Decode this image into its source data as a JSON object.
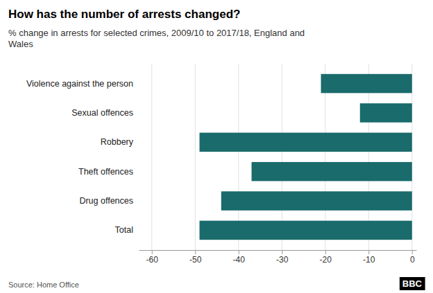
{
  "chart_data": {
    "type": "bar",
    "orientation": "horizontal",
    "title": "How has the number of arrests changed?",
    "subtitle": "% change in arrests for selected crimes, 2009/10 to 2017/18, England and\nWales",
    "source": "Source: Home Office",
    "annotations": [
      "BBC"
    ],
    "categories": [
      "Total",
      "Drug offences",
      "Theft offences",
      "Robbery",
      "Sexual offences",
      "Violence against the person"
    ],
    "values": [
      -49,
      -44,
      -37,
      -49,
      -12,
      -21
    ],
    "color": "#1a6b6b",
    "xlim": [
      -63,
      1
    ],
    "xticks": [
      -60,
      -50,
      -40,
      -30,
      -20,
      -10,
      0
    ],
    "grid": true
  }
}
